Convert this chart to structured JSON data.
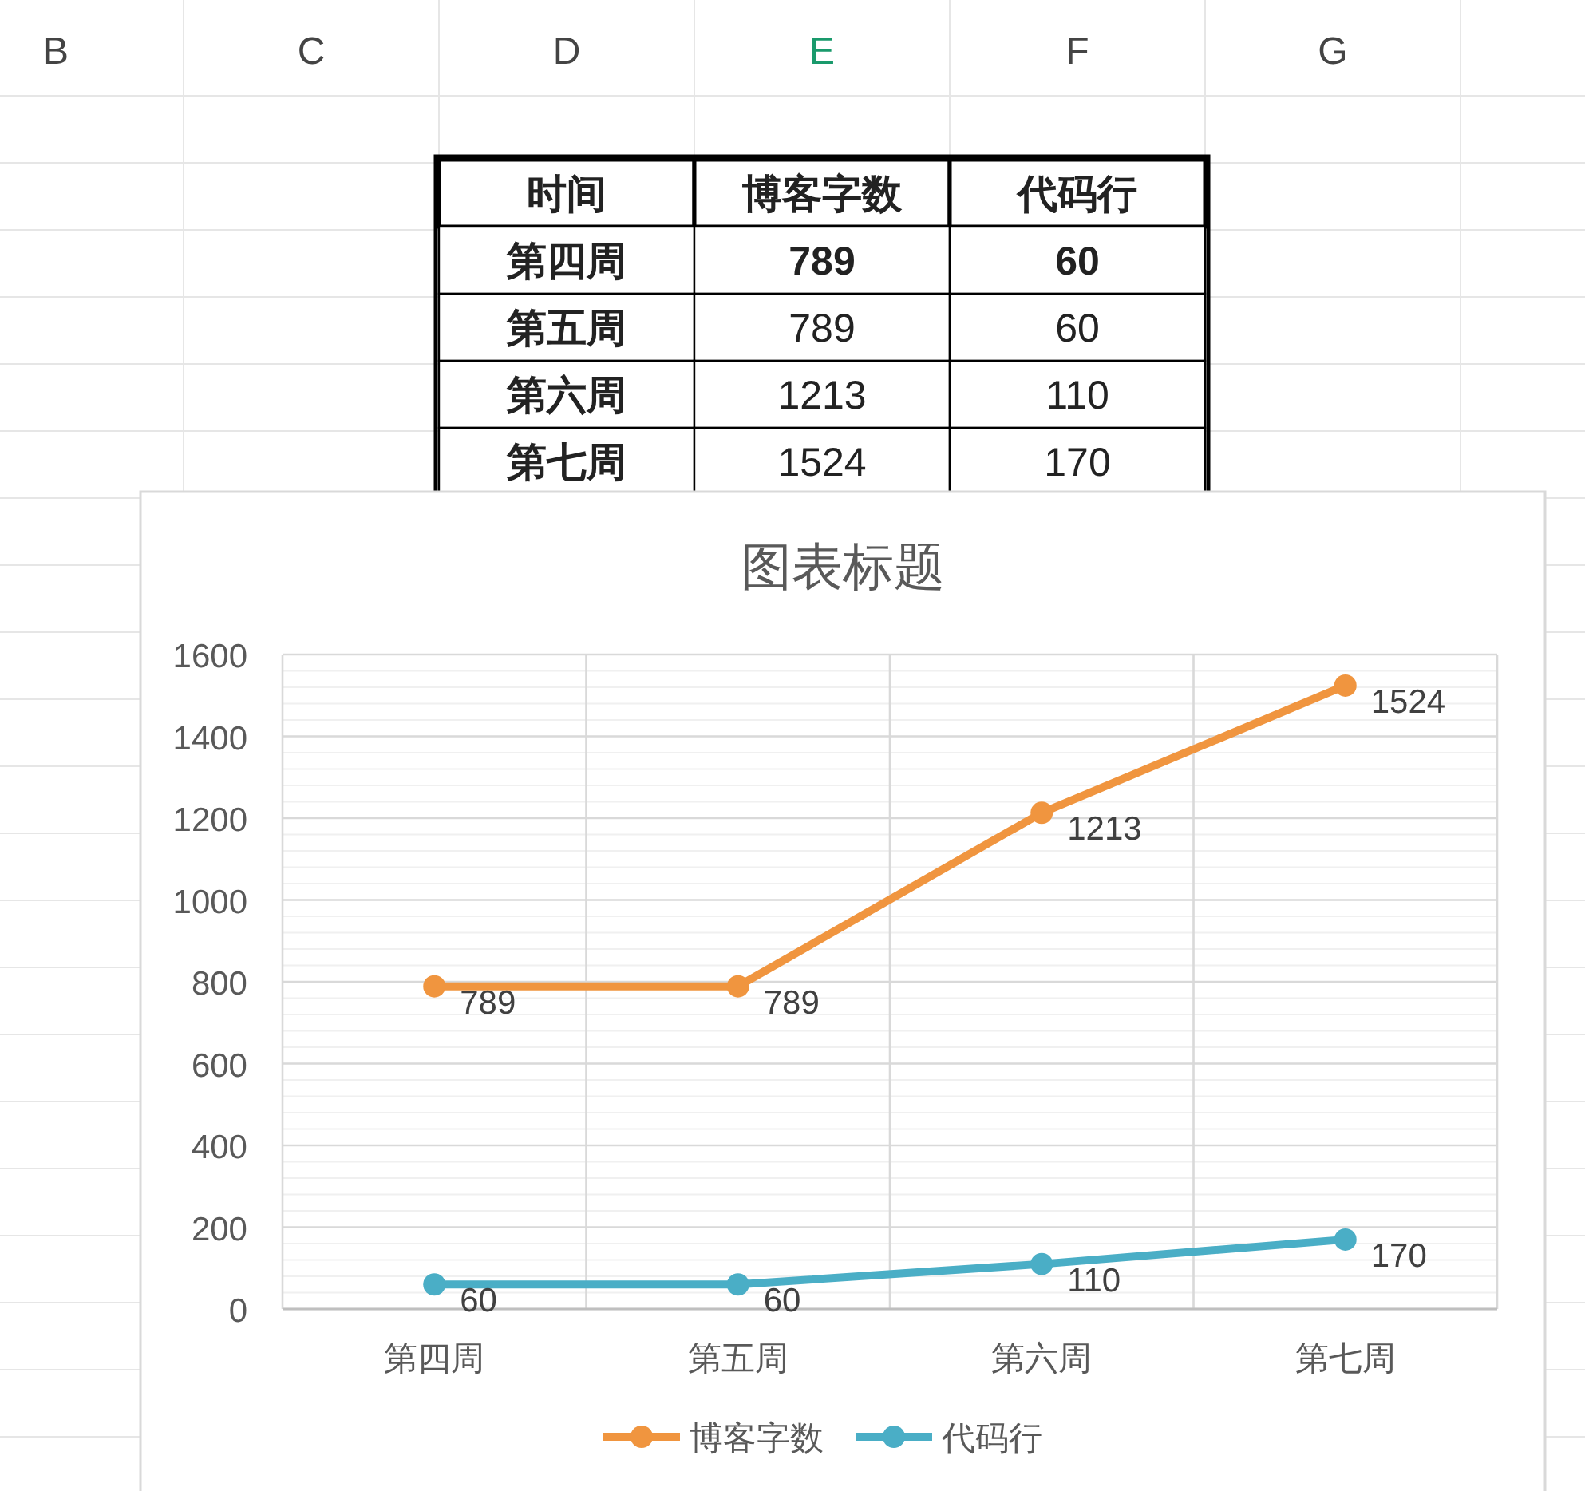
{
  "chart_data": {
    "type": "line",
    "title": "图表标题",
    "categories": [
      "第四周",
      "第五周",
      "第六周",
      "第七周"
    ],
    "series": [
      {
        "name": "博客字数",
        "color": "#f0953f",
        "values": [
          789,
          789,
          1213,
          1524
        ]
      },
      {
        "name": "代码行",
        "color": "#4aaec6",
        "values": [
          60,
          60,
          110,
          170
        ]
      }
    ],
    "ylim": [
      0,
      1600
    ],
    "yticks": [
      0,
      200,
      400,
      600,
      800,
      1000,
      1200,
      1400,
      1600
    ],
    "grid": true,
    "legend": "bottom",
    "marker": "circle",
    "line_style": "solid",
    "data_labels": true,
    "annotations": [
      "时间",
      "B",
      "C",
      "D",
      "E",
      "F",
      "G",
      "789",
      "60",
      "789",
      "60",
      "1213",
      "110",
      "1524",
      "170"
    ]
  }
}
